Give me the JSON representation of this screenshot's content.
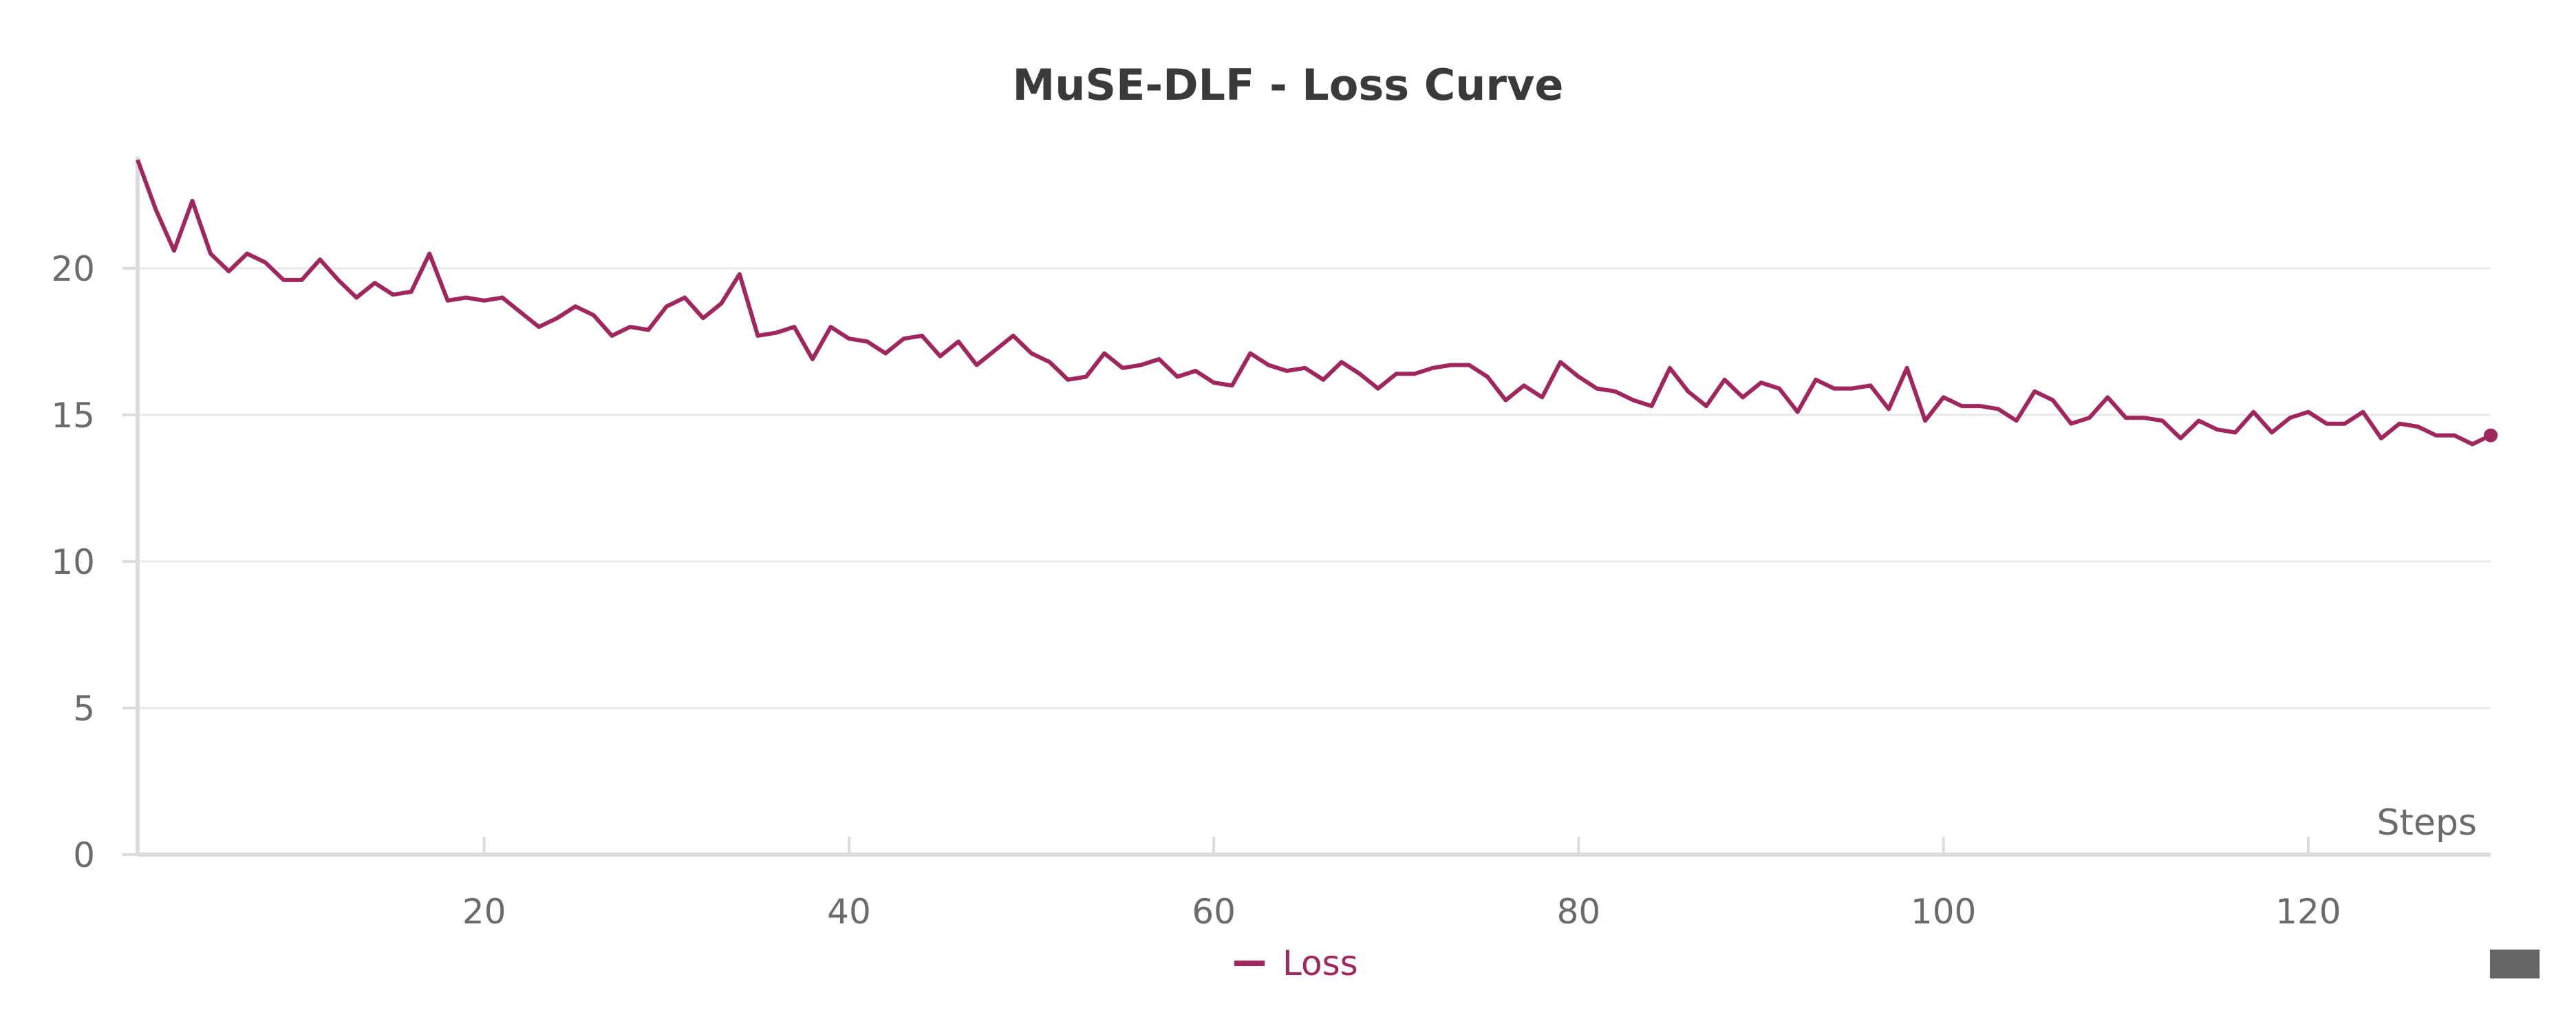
{
  "chart_data": {
    "type": "line",
    "title": "MuSE-DLF - Loss Curve",
    "xlabel": "Steps",
    "ylabel": "",
    "xlim": [
      1,
      130
    ],
    "ylim": [
      0,
      23.8
    ],
    "x_ticks": [
      20,
      40,
      60,
      80,
      100,
      120
    ],
    "y_ticks": [
      0,
      5,
      10,
      15,
      20
    ],
    "grid": "horizontal",
    "legend": "bottom-center",
    "series": [
      {
        "name": "Loss",
        "color": "#a0265e",
        "x": [
          1,
          2,
          3,
          4,
          5,
          6,
          7,
          8,
          9,
          10,
          11,
          12,
          13,
          14,
          15,
          16,
          17,
          18,
          19,
          20,
          21,
          22,
          23,
          24,
          25,
          26,
          27,
          28,
          29,
          30,
          31,
          32,
          33,
          34,
          35,
          36,
          37,
          38,
          39,
          40,
          41,
          42,
          43,
          44,
          45,
          46,
          47,
          48,
          49,
          50,
          51,
          52,
          53,
          54,
          55,
          56,
          57,
          58,
          59,
          60,
          61,
          62,
          63,
          64,
          65,
          66,
          67,
          68,
          69,
          70,
          71,
          72,
          73,
          74,
          75,
          76,
          77,
          78,
          79,
          80,
          81,
          82,
          83,
          84,
          85,
          86,
          87,
          88,
          89,
          90,
          91,
          92,
          93,
          94,
          95,
          96,
          97,
          98,
          99,
          100,
          101,
          102,
          103,
          104,
          105,
          106,
          107,
          108,
          109,
          110,
          111,
          112,
          113,
          114,
          115,
          116,
          117,
          118,
          119,
          120,
          121,
          122,
          123,
          124,
          125,
          126,
          127,
          128,
          129,
          130
        ],
        "values": [
          23.7,
          22.0,
          20.6,
          22.3,
          20.5,
          19.9,
          20.5,
          20.2,
          19.6,
          19.6,
          20.3,
          19.6,
          19.0,
          19.5,
          19.1,
          19.2,
          20.5,
          18.9,
          19.0,
          18.9,
          19.0,
          18.5,
          18.0,
          18.3,
          18.7,
          18.4,
          17.7,
          18.0,
          17.9,
          18.7,
          19.0,
          18.3,
          18.8,
          19.8,
          17.7,
          17.8,
          18.0,
          16.9,
          18.0,
          17.6,
          17.5,
          17.1,
          17.6,
          17.7,
          17.0,
          17.5,
          16.7,
          17.2,
          17.7,
          17.1,
          16.8,
          16.2,
          16.3,
          17.1,
          16.6,
          16.7,
          16.9,
          16.3,
          16.5,
          16.1,
          16.0,
          17.1,
          16.7,
          16.5,
          16.6,
          16.2,
          16.8,
          16.4,
          15.9,
          16.4,
          16.4,
          16.6,
          16.7,
          16.7,
          16.3,
          15.5,
          16.0,
          15.6,
          16.8,
          16.3,
          15.9,
          15.8,
          15.5,
          15.3,
          16.6,
          15.8,
          15.3,
          16.2,
          15.6,
          16.1,
          15.9,
          15.1,
          16.2,
          15.9,
          15.9,
          16.0,
          15.2,
          16.6,
          14.8,
          15.6,
          15.3,
          15.3,
          15.2,
          14.8,
          15.8,
          15.5,
          14.7,
          14.9,
          15.6,
          14.9,
          14.9,
          14.8,
          14.2,
          14.8,
          14.5,
          14.4,
          15.1,
          14.4,
          14.9,
          15.1,
          14.7,
          14.7,
          15.1,
          14.2,
          14.7,
          14.6,
          14.3,
          14.3,
          14.0,
          14.3
        ]
      }
    ]
  }
}
